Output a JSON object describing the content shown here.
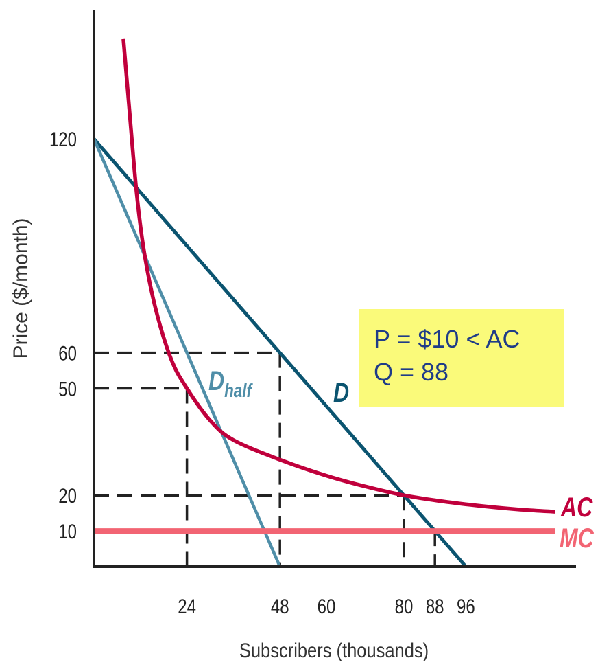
{
  "chart_data": {
    "type": "line",
    "xlabel": "Subscribers (thousands)",
    "ylabel": "Price ($/month)",
    "xlim": [
      0,
      124
    ],
    "ylim": [
      0,
      156
    ],
    "x_ticks": [
      24,
      48,
      60,
      80,
      88,
      96
    ],
    "y_ticks": [
      120,
      60,
      50,
      20,
      10
    ],
    "grid": false,
    "series": [
      {
        "name": "D",
        "color": "#0b5470",
        "points": [
          [
            0,
            120
          ],
          [
            96,
            0
          ]
        ]
      },
      {
        "name": "D",
        "subscript": "half",
        "color": "#4f8ea8",
        "points": [
          [
            0,
            120
          ],
          [
            48,
            0
          ]
        ]
      },
      {
        "name": "AC",
        "color": "#c0003c",
        "points": [
          [
            7.6,
            148
          ],
          [
            9,
            130
          ],
          [
            11,
            105
          ],
          [
            13,
            88
          ],
          [
            16,
            72
          ],
          [
            20,
            58
          ],
          [
            24,
            50
          ],
          [
            30,
            41
          ],
          [
            36,
            35.5
          ],
          [
            48,
            30
          ],
          [
            60,
            25.5
          ],
          [
            70,
            22.5
          ],
          [
            80,
            20
          ],
          [
            90,
            18.3
          ],
          [
            100,
            17
          ],
          [
            110,
            16
          ],
          [
            119,
            15.4
          ]
        ]
      },
      {
        "name": "MC",
        "color": "#f26473",
        "points": [
          [
            0,
            10
          ],
          [
            119,
            10
          ]
        ]
      }
    ],
    "guides": [
      {
        "x": 48,
        "y": 60
      },
      {
        "x": 24,
        "y": 50
      },
      {
        "x": 80,
        "y": 20
      },
      {
        "x": 88,
        "y": 10
      }
    ],
    "annotation": {
      "lines": [
        "P = $10 < AC",
        "Q = 88"
      ],
      "background": "#fafa7a",
      "color": "#1f3c88"
    }
  }
}
